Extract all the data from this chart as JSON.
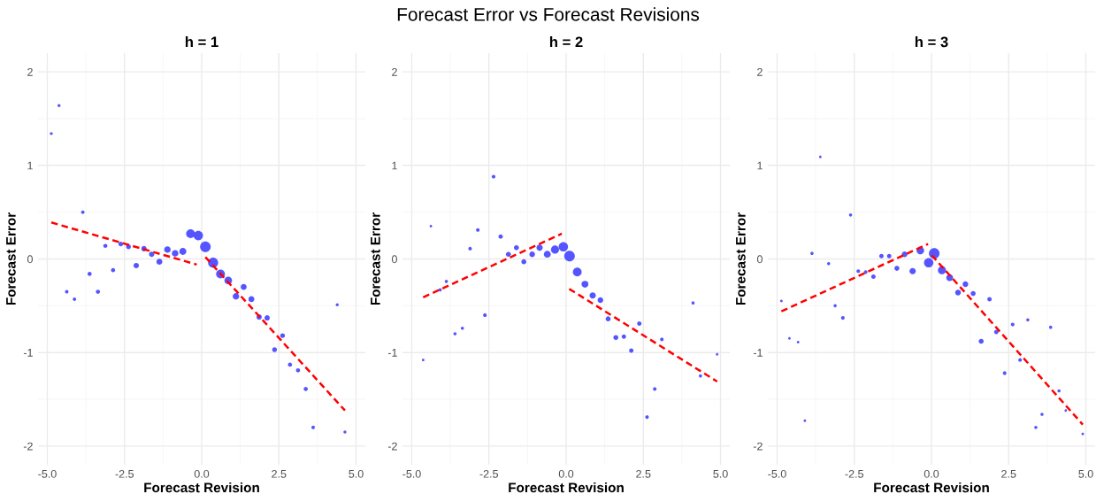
{
  "chart_data": [
    {
      "type": "bubble",
      "title": "h = 1",
      "xlabel": "Forecast Revision",
      "ylabel": "Forecast Error",
      "annotations": [
        "Forecast Error vs Forecast Revisions"
      ],
      "xlim": [
        -5.3,
        5.3
      ],
      "ylim": [
        -2.2,
        2.2
      ],
      "xticks": [
        {
          "value": -5,
          "label": "-5.0"
        },
        {
          "value": -2.5,
          "label": "-2.5"
        },
        {
          "value": 0,
          "label": "0.0"
        },
        {
          "value": 2.5,
          "label": "2.5"
        },
        {
          "value": 5,
          "label": "5.0"
        }
      ],
      "yticks": [
        -2,
        -1,
        0,
        1,
        2
      ],
      "grid": true,
      "series": [
        {
          "color": "#4c4cff",
          "x": [
            -4.87,
            -4.62,
            -4.37,
            -4.12,
            -3.85,
            -3.63,
            -3.36,
            -3.12,
            -2.87,
            -2.62,
            -2.37,
            -2.12,
            -1.87,
            -1.62,
            -1.37,
            -1.11,
            -0.86,
            -0.61,
            -0.36,
            -0.11,
            0.12,
            0.37,
            0.61,
            0.86,
            1.11,
            1.36,
            1.61,
            1.86,
            2.12,
            2.36,
            2.62,
            2.86,
            3.12,
            3.37,
            3.61,
            4.39,
            4.64
          ],
          "values": [
            1.34,
            1.64,
            -0.35,
            -0.43,
            0.5,
            -0.16,
            -0.35,
            0.14,
            -0.12,
            0.16,
            0.13,
            -0.07,
            0.11,
            0.05,
            -0.03,
            0.1,
            0.06,
            0.08,
            0.27,
            0.25,
            0.13,
            -0.04,
            -0.16,
            -0.23,
            -0.4,
            -0.3,
            -0.43,
            -0.62,
            -0.63,
            -0.97,
            -0.82,
            -1.13,
            -1.19,
            -1.39,
            -1.8,
            -0.49,
            -1.85
          ],
          "sizes": [
            0.08,
            0.08,
            0.11,
            0.11,
            0.11,
            0.15,
            0.15,
            0.15,
            0.15,
            0.2,
            0.2,
            0.25,
            0.25,
            0.25,
            0.31,
            0.37,
            0.37,
            0.44,
            0.69,
            0.79,
            1,
            0.89,
            0.69,
            0.52,
            0.37,
            0.31,
            0.31,
            0.25,
            0.25,
            0.2,
            0.2,
            0.15,
            0.15,
            0.15,
            0.11,
            0.08,
            0.08
          ]
        },
        {
          "type": "line",
          "color": "#ff0000",
          "line_style": "dashed",
          "x": [
            -4.87,
            -0.16
          ],
          "values": [
            0.39,
            -0.06
          ]
        },
        {
          "type": "line",
          "color": "#ff0000",
          "line_style": "dashed",
          "x": [
            0.12,
            4.64
          ],
          "values": [
            0.02,
            -1.62
          ]
        }
      ]
    },
    {
      "type": "bubble",
      "title": "h = 2",
      "xlabel": "Forecast Revision",
      "ylabel": "Forecast Error",
      "xlim": [
        -5.3,
        5.3
      ],
      "ylim": [
        -2.2,
        2.2
      ],
      "xticks": [
        {
          "value": -5,
          "label": "-5.0"
        },
        {
          "value": -2.5,
          "label": "-2.5"
        },
        {
          "value": 0,
          "label": "0.0"
        },
        {
          "value": 2.5,
          "label": "2.5"
        },
        {
          "value": 5,
          "label": "5.0"
        }
      ],
      "yticks": [
        -2,
        -1,
        0,
        1,
        2
      ],
      "grid": true,
      "series": [
        {
          "color": "#4c4cff",
          "x": [
            -4.63,
            -4.38,
            -4.08,
            -3.88,
            -3.6,
            -3.36,
            -3.11,
            -2.86,
            -2.63,
            -2.35,
            -2.12,
            -1.87,
            -1.61,
            -1.37,
            -1.1,
            -0.86,
            -0.61,
            -0.36,
            -0.09,
            0.11,
            0.36,
            0.61,
            0.86,
            1.11,
            1.36,
            1.61,
            1.87,
            2.11,
            2.37,
            2.62,
            2.87,
            3.1,
            4.11,
            4.35,
            4.89
          ],
          "values": [
            -1.08,
            0.35,
            -0.33,
            -0.24,
            -0.8,
            -0.74,
            0.11,
            0.31,
            -0.6,
            0.88,
            0.24,
            0.05,
            0.12,
            -0.03,
            0.05,
            0.12,
            0.05,
            0.1,
            0.13,
            0.03,
            -0.14,
            -0.27,
            -0.39,
            -0.44,
            -0.64,
            -0.84,
            -0.83,
            -0.98,
            -0.69,
            -1.69,
            -1.39,
            -0.86,
            -0.47,
            -1.25,
            -1.02
          ],
          "sizes": [
            0.06,
            0.06,
            0.09,
            0.09,
            0.09,
            0.09,
            0.12,
            0.12,
            0.12,
            0.12,
            0.17,
            0.22,
            0.22,
            0.22,
            0.28,
            0.35,
            0.42,
            0.58,
            0.78,
            1,
            0.68,
            0.42,
            0.35,
            0.28,
            0.22,
            0.22,
            0.17,
            0.17,
            0.17,
            0.12,
            0.12,
            0.12,
            0.09,
            0.09,
            0.06
          ]
        },
        {
          "type": "line",
          "color": "#ff0000",
          "line_style": "dashed",
          "x": [
            -4.63,
            -0.14
          ],
          "values": [
            -0.41,
            0.27
          ]
        },
        {
          "type": "line",
          "color": "#ff0000",
          "line_style": "dashed",
          "x": [
            0.1,
            4.89
          ],
          "values": [
            -0.32,
            -1.31
          ]
        }
      ]
    },
    {
      "type": "bubble",
      "title": "h = 3",
      "xlabel": "Forecast Revision",
      "ylabel": "Forecast Error",
      "xlim": [
        -5.3,
        5.3
      ],
      "ylim": [
        -2.2,
        2.2
      ],
      "xticks": [
        {
          "value": -5,
          "label": "-5.0"
        },
        {
          "value": -2.5,
          "label": "-2.5"
        },
        {
          "value": 0,
          "label": "0.0"
        },
        {
          "value": 2.5,
          "label": "2.5"
        },
        {
          "value": 5,
          "label": "5.0"
        }
      ],
      "yticks": [
        -2,
        -1,
        0,
        1,
        2
      ],
      "grid": true,
      "series": [
        {
          "color": "#4c4cff",
          "x": [
            -4.86,
            -4.6,
            -4.32,
            -4.1,
            -3.87,
            -3.6,
            -3.33,
            -3.12,
            -2.87,
            -2.62,
            -2.37,
            -2.13,
            -1.88,
            -1.62,
            -1.37,
            -1.12,
            -0.87,
            -0.61,
            -0.36,
            -0.09,
            0.09,
            0.34,
            0.59,
            0.86,
            1.1,
            1.35,
            1.61,
            1.88,
            2.1,
            2.37,
            2.63,
            2.87,
            3.12,
            3.38,
            3.58,
            3.86,
            4.13,
            4.35,
            4.9
          ],
          "values": [
            -0.45,
            -0.85,
            -0.89,
            -1.73,
            0.06,
            1.09,
            -0.05,
            -0.5,
            -0.63,
            0.47,
            -0.13,
            -0.14,
            -0.19,
            0.03,
            0.03,
            -0.1,
            0.05,
            -0.13,
            0.09,
            -0.04,
            0.06,
            -0.12,
            -0.2,
            -0.36,
            -0.27,
            -0.37,
            -0.88,
            -0.43,
            -0.78,
            -1.22,
            -0.7,
            -1.08,
            -0.65,
            -1.8,
            -1.66,
            -0.73,
            -1.41,
            -1.62,
            -1.87
          ],
          "sizes": [
            0.06,
            0.06,
            0.06,
            0.06,
            0.09,
            0.06,
            0.09,
            0.09,
            0.12,
            0.09,
            0.12,
            0.12,
            0.17,
            0.17,
            0.17,
            0.22,
            0.28,
            0.35,
            0.5,
            0.78,
            1,
            0.58,
            0.42,
            0.28,
            0.28,
            0.22,
            0.22,
            0.17,
            0.17,
            0.12,
            0.12,
            0.12,
            0.09,
            0.09,
            0.09,
            0.09,
            0.09,
            0.06,
            0.06
          ]
        },
        {
          "type": "line",
          "color": "#ff0000",
          "line_style": "dashed",
          "x": [
            -4.86,
            -0.11
          ],
          "values": [
            -0.56,
            0.16
          ]
        },
        {
          "type": "line",
          "color": "#ff0000",
          "line_style": "dashed",
          "x": [
            0.01,
            4.9
          ],
          "values": [
            0.04,
            -1.77
          ]
        }
      ]
    }
  ]
}
